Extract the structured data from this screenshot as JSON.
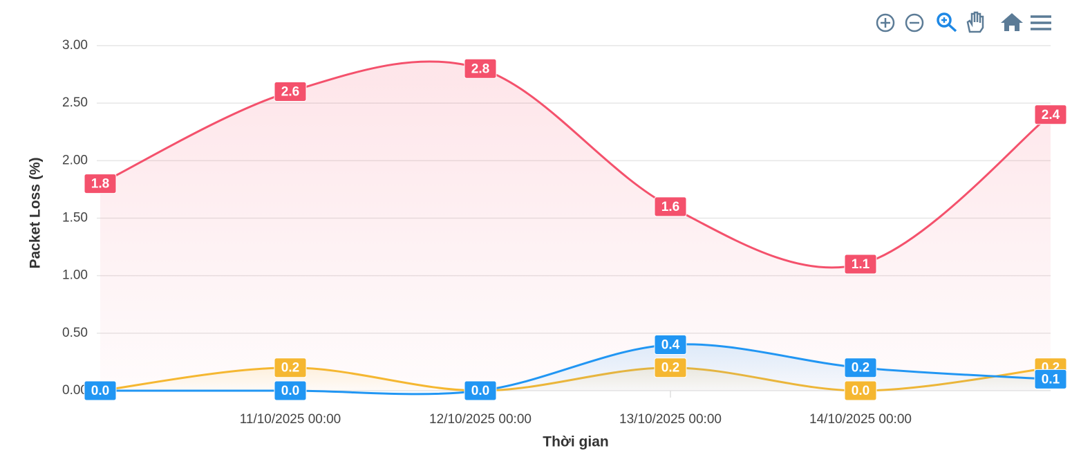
{
  "chart_data": {
    "type": "line",
    "ylabel": "Packet Loss (%)",
    "xlabel": "Thời gian",
    "categories": [
      null,
      "11/10/2025 00:00",
      "12/10/2025 00:00",
      "13/10/2025 00:00",
      "14/10/2025 00:00",
      null
    ],
    "ylim": [
      0,
      3
    ],
    "yticks": [
      {
        "value": 0,
        "label": "0.00"
      },
      {
        "value": 0.5,
        "label": "0.50"
      },
      {
        "value": 1,
        "label": "1.00"
      },
      {
        "value": 1.5,
        "label": "1.50"
      },
      {
        "value": 2,
        "label": "2.00"
      },
      {
        "value": 2.5,
        "label": "2.50"
      },
      {
        "value": 3,
        "label": "3.00"
      }
    ],
    "grid": true,
    "series": [
      {
        "color": "#f4516c",
        "values": [
          1.8,
          2.6,
          2.8,
          1.6,
          1.1,
          2.4
        ],
        "value_labels": [
          "1.8",
          "2.6",
          "2.8",
          "1.6",
          "1.1",
          "2.4"
        ]
      },
      {
        "color": "#f5b731",
        "values": [
          0,
          0.2,
          0,
          0.2,
          0,
          0.2
        ],
        "value_labels": [
          "0.0",
          "0.2",
          "0.0",
          "0.2",
          "0.0",
          "0.2"
        ]
      },
      {
        "color": "#2196f3",
        "values": [
          0,
          0,
          0,
          0.4,
          0.2,
          0.1
        ],
        "value_labels": [
          "0.0",
          "0.0",
          "0.0",
          "0.4",
          "0.2",
          "0.1"
        ]
      }
    ]
  }
}
